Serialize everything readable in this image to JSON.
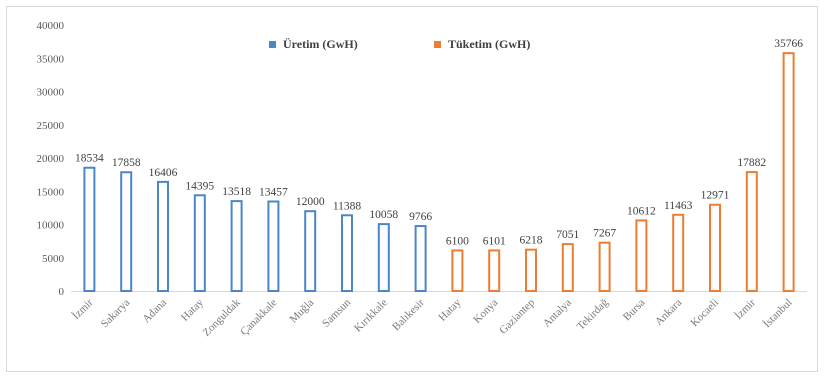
{
  "chart_data": {
    "type": "bar",
    "ylim": [
      0,
      40000
    ],
    "yticks": [
      0,
      5000,
      10000,
      15000,
      20000,
      25000,
      30000,
      35000,
      40000
    ],
    "legend_position": "top-center",
    "grid": false,
    "colors": {
      "uretim": "#4a86c8",
      "tuketim": "#ed7d31"
    },
    "series": [
      {
        "name": "Üretim (GwH)",
        "categories": [
          "İzmir",
          "Sakarya",
          "Adana",
          "Hatay",
          "Zonguldak",
          "Çanakkale",
          "Muğla",
          "Samsun",
          "Kırıkkale",
          "Balıkesir"
        ],
        "values": [
          18534,
          17858,
          16406,
          14395,
          13518,
          13457,
          12000,
          11388,
          10058,
          9766
        ]
      },
      {
        "name": "Tüketim (GwH)",
        "categories": [
          "Hatay",
          "Konya",
          "Gaziantep",
          "Antalya",
          "Tekirdağ",
          "Bursa",
          "Ankara",
          "Kocaeli",
          "İzmir",
          "İstanbul"
        ],
        "values": [
          6100,
          6101,
          6218,
          7051,
          7267,
          10612,
          11463,
          12971,
          17882,
          35766
        ]
      }
    ]
  }
}
